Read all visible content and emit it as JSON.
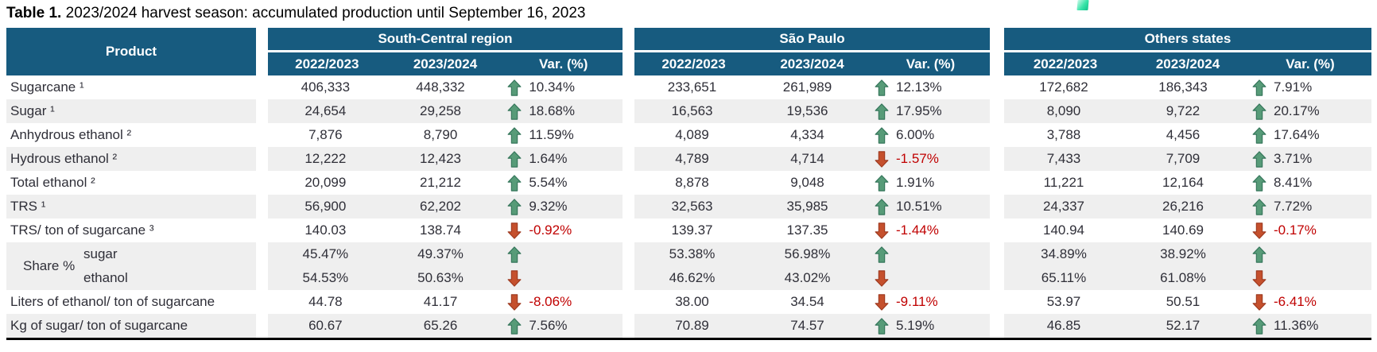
{
  "title": {
    "prefix": "Table 1.",
    "text": " 2023/2024 harvest season: accumulated production until September 16, 2023"
  },
  "product_header": "Product",
  "regions": [
    "South-Central region",
    "São Paulo",
    "Others states"
  ],
  "sub_headers": [
    "2022/2023",
    "2023/2024",
    "Var. (%)"
  ],
  "colors": {
    "header_blue": "#175b7f",
    "stripe_gray": "#efefef",
    "text_dark": "#2f2f38",
    "up_green": "#579b78",
    "up_green_border": "#34755a",
    "down_red": "#c5502d",
    "down_red_border": "#9e3a20",
    "negative_text": "#c00000",
    "logo_teal": "#38e4a8"
  },
  "icons": {
    "up": "up-arrow-icon",
    "down": "down-arrow-icon"
  },
  "rows": [
    {
      "product": "Sugarcane ¹",
      "cells": [
        {
          "y1": "406,333",
          "y2": "448,332",
          "dir": "up",
          "var": "10.34%"
        },
        {
          "y1": "233,651",
          "y2": "261,989",
          "dir": "up",
          "var": "12.13%"
        },
        {
          "y1": "172,682",
          "y2": "186,343",
          "dir": "up",
          "var": "7.91%"
        }
      ]
    },
    {
      "product": "Sugar ¹",
      "cells": [
        {
          "y1": "24,654",
          "y2": "29,258",
          "dir": "up",
          "var": "18.68%"
        },
        {
          "y1": "16,563",
          "y2": "19,536",
          "dir": "up",
          "var": "17.95%"
        },
        {
          "y1": "8,090",
          "y2": "9,722",
          "dir": "up",
          "var": "20.17%"
        }
      ]
    },
    {
      "product": "Anhydrous ethanol ²",
      "cells": [
        {
          "y1": "7,876",
          "y2": "8,790",
          "dir": "up",
          "var": "11.59%"
        },
        {
          "y1": "4,089",
          "y2": "4,334",
          "dir": "up",
          "var": "6.00%"
        },
        {
          "y1": "3,788",
          "y2": "4,456",
          "dir": "up",
          "var": "17.64%"
        }
      ]
    },
    {
      "product": "Hydrous ethanol ²",
      "cells": [
        {
          "y1": "12,222",
          "y2": "12,423",
          "dir": "up",
          "var": "1.64%"
        },
        {
          "y1": "4,789",
          "y2": "4,714",
          "dir": "down",
          "var": "-1.57%"
        },
        {
          "y1": "7,433",
          "y2": "7,709",
          "dir": "up",
          "var": "3.71%"
        }
      ]
    },
    {
      "product": "Total ethanol ²",
      "cells": [
        {
          "y1": "20,099",
          "y2": "21,212",
          "dir": "up",
          "var": "5.54%"
        },
        {
          "y1": "8,878",
          "y2": "9,048",
          "dir": "up",
          "var": "1.91%"
        },
        {
          "y1": "11,221",
          "y2": "12,164",
          "dir": "up",
          "var": "8.41%"
        }
      ]
    },
    {
      "product": "TRS ¹",
      "cells": [
        {
          "y1": "56,900",
          "y2": "62,202",
          "dir": "up",
          "var": "9.32%"
        },
        {
          "y1": "32,563",
          "y2": "35,985",
          "dir": "up",
          "var": "10.51%"
        },
        {
          "y1": "24,337",
          "y2": "26,216",
          "dir": "up",
          "var": "7.72%"
        }
      ]
    },
    {
      "product": "TRS/ ton of sugarcane ³",
      "cells": [
        {
          "y1": "140.03",
          "y2": "138.74",
          "dir": "down",
          "var": "-0.92%"
        },
        {
          "y1": "139.37",
          "y2": "137.35",
          "dir": "down",
          "var": "-1.44%"
        },
        {
          "y1": "140.94",
          "y2": "140.69",
          "dir": "down",
          "var": "-0.17%"
        }
      ]
    },
    {
      "type": "share",
      "label": "Share %",
      "subrows": [
        {
          "name": "sugar",
          "cells": [
            {
              "y1": "45.47%",
              "y2": "49.37%",
              "dir": "up",
              "var": ""
            },
            {
              "y1": "53.38%",
              "y2": "56.98%",
              "dir": "up",
              "var": ""
            },
            {
              "y1": "34.89%",
              "y2": "38.92%",
              "dir": "up",
              "var": ""
            }
          ]
        },
        {
          "name": "ethanol",
          "cells": [
            {
              "y1": "54.53%",
              "y2": "50.63%",
              "dir": "down",
              "var": ""
            },
            {
              "y1": "46.62%",
              "y2": "43.02%",
              "dir": "down",
              "var": ""
            },
            {
              "y1": "65.11%",
              "y2": "61.08%",
              "dir": "down",
              "var": ""
            }
          ]
        }
      ]
    },
    {
      "product": "Liters of ethanol/ ton of sugarcane",
      "cells": [
        {
          "y1": "44.78",
          "y2": "41.17",
          "dir": "down",
          "var": "-8.06%"
        },
        {
          "y1": "38.00",
          "y2": "34.54",
          "dir": "down",
          "var": "-9.11%"
        },
        {
          "y1": "53.97",
          "y2": "50.51",
          "dir": "down",
          "var": "-6.41%"
        }
      ]
    },
    {
      "product": "Kg of sugar/ ton of sugarcane",
      "cells": [
        {
          "y1": "60.67",
          "y2": "65.26",
          "dir": "up",
          "var": "7.56%"
        },
        {
          "y1": "70.89",
          "y2": "74.57",
          "dir": "up",
          "var": "5.19%"
        },
        {
          "y1": "46.85",
          "y2": "52.17",
          "dir": "up",
          "var": "11.36%"
        }
      ]
    }
  ]
}
